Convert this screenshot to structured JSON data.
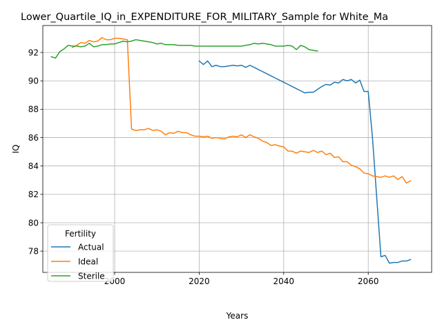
{
  "chart_data": {
    "type": "line",
    "title": "Lower_Quartile_IQ_in_EXPENDITURE_FOR_MILITARY_Sample for White_Ma",
    "xlabel": "Years",
    "ylabel": "IQ",
    "xlim": [
      1983,
      2075
    ],
    "ylim": [
      76.5,
      93.9
    ],
    "x_ticks": [
      2000,
      2020,
      2040,
      2060
    ],
    "y_ticks": [
      78,
      80,
      82,
      84,
      86,
      88,
      90,
      92
    ],
    "grid": true,
    "legend": {
      "title": "Fertility",
      "position": "lower-left"
    },
    "colors": {
      "Actual": "#1f77b4",
      "Ideal": "#ff7f0e",
      "Sterile": "#2ca02c"
    },
    "series": [
      {
        "name": "Actual",
        "x": [
          2020,
          2021,
          2022,
          2023,
          2024,
          2025,
          2026,
          2027,
          2028,
          2029,
          2030,
          2031,
          2032,
          2033,
          2034,
          2035,
          2036,
          2037,
          2038,
          2039,
          2040,
          2041,
          2042,
          2043,
          2044,
          2045,
          2046,
          2047,
          2048,
          2049,
          2050,
          2051,
          2052,
          2053,
          2054,
          2055,
          2056,
          2057,
          2058,
          2059,
          2060,
          2061,
          2062,
          2063,
          2064,
          2065,
          2066,
          2067,
          2068,
          2069,
          2070
        ],
        "values": [
          91.4,
          91.15,
          91.4,
          91.0,
          91.1,
          91.0,
          91.0,
          91.05,
          91.1,
          91.05,
          91.1,
          90.95,
          91.1,
          90.95,
          90.8,
          90.65,
          90.5,
          90.35,
          90.2,
          90.05,
          89.9,
          89.75,
          89.6,
          89.45,
          89.3,
          89.15,
          89.2,
          89.2,
          89.4,
          89.6,
          89.75,
          89.7,
          89.9,
          89.85,
          90.1,
          90.0,
          90.1,
          89.85,
          90.05,
          89.25,
          89.25,
          86.0,
          81.8,
          77.6,
          77.7,
          77.15,
          77.2,
          77.2,
          77.3,
          77.3,
          77.4
        ]
      },
      {
        "name": "Ideal",
        "x": [
          1990,
          1991,
          1992,
          1993,
          1994,
          1995,
          1996,
          1997,
          1998,
          1999,
          2000,
          2001,
          2002,
          2003,
          2004,
          2005,
          2006,
          2007,
          2008,
          2009,
          2010,
          2011,
          2012,
          2013,
          2014,
          2015,
          2016,
          2017,
          2018,
          2019,
          2020,
          2021,
          2022,
          2023,
          2024,
          2025,
          2026,
          2027,
          2028,
          2029,
          2030,
          2031,
          2032,
          2033,
          2034,
          2035,
          2036,
          2037,
          2038,
          2039,
          2040,
          2041,
          2042,
          2043,
          2044,
          2045,
          2046,
          2047,
          2048,
          2049,
          2050,
          2051,
          2052,
          2053,
          2054,
          2055,
          2056,
          2057,
          2058,
          2059,
          2060,
          2061,
          2062,
          2063,
          2064,
          2065,
          2066,
          2067,
          2068,
          2069,
          2070
        ],
        "values": [
          92.35,
          92.5,
          92.7,
          92.65,
          92.85,
          92.75,
          92.8,
          93.05,
          92.9,
          92.9,
          93.0,
          93.0,
          92.95,
          92.9,
          86.6,
          86.5,
          86.55,
          86.55,
          86.65,
          86.5,
          86.55,
          86.45,
          86.2,
          86.35,
          86.3,
          86.45,
          86.35,
          86.35,
          86.2,
          86.1,
          86.1,
          86.05,
          86.1,
          85.95,
          86.0,
          85.95,
          85.9,
          86.05,
          86.1,
          86.05,
          86.2,
          86.0,
          86.2,
          86.05,
          85.95,
          85.75,
          85.65,
          85.45,
          85.5,
          85.4,
          85.35,
          85.05,
          85.05,
          84.9,
          85.05,
          85.0,
          84.95,
          85.1,
          84.95,
          85.05,
          84.8,
          84.9,
          84.6,
          84.65,
          84.3,
          84.3,
          84.05,
          83.95,
          83.8,
          83.5,
          83.45,
          83.3,
          83.25,
          83.2,
          83.3,
          83.2,
          83.3,
          83.05,
          83.25,
          82.8,
          82.95
        ]
      },
      {
        "name": "Sterile",
        "x": [
          1985,
          1986,
          1987,
          1988,
          1989,
          1990,
          1991,
          1992,
          1993,
          1994,
          1995,
          1996,
          1997,
          1998,
          1999,
          2000,
          2001,
          2002,
          2003,
          2004,
          2005,
          2006,
          2007,
          2008,
          2009,
          2010,
          2011,
          2012,
          2013,
          2014,
          2015,
          2016,
          2017,
          2018,
          2019,
          2020,
          2021,
          2022,
          2023,
          2024,
          2025,
          2026,
          2027,
          2028,
          2029,
          2030,
          2031,
          2032,
          2033,
          2034,
          2035,
          2036,
          2037,
          2038,
          2039,
          2040,
          2041,
          2042,
          2043,
          2044,
          2045,
          2046,
          2047,
          2048
        ],
        "values": [
          91.7,
          91.6,
          92.05,
          92.25,
          92.5,
          92.45,
          92.45,
          92.4,
          92.45,
          92.65,
          92.4,
          92.45,
          92.55,
          92.55,
          92.6,
          92.6,
          92.7,
          92.8,
          92.75,
          92.8,
          92.9,
          92.85,
          92.8,
          92.75,
          92.7,
          92.6,
          92.65,
          92.55,
          92.55,
          92.55,
          92.5,
          92.5,
          92.5,
          92.5,
          92.45,
          92.45,
          92.45,
          92.45,
          92.45,
          92.45,
          92.45,
          92.45,
          92.45,
          92.45,
          92.45,
          92.45,
          92.5,
          92.55,
          92.65,
          92.6,
          92.65,
          92.6,
          92.55,
          92.45,
          92.45,
          92.45,
          92.5,
          92.45,
          92.2,
          92.5,
          92.4,
          92.2,
          92.15,
          92.1
        ]
      }
    ]
  }
}
